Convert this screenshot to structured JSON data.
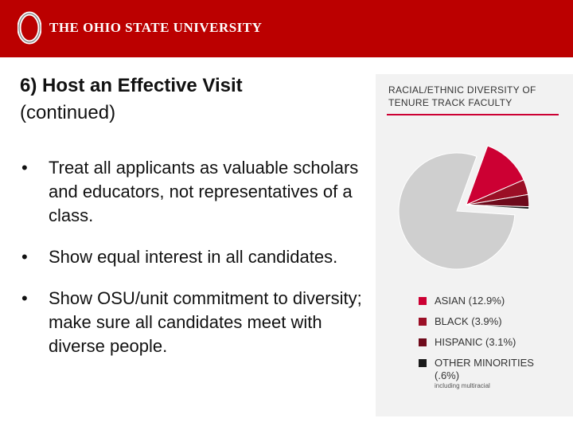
{
  "header": {
    "university": "THE OHIO STATE UNIVERSITY",
    "logo_letter": "O",
    "bg_color": "#bb0000"
  },
  "slide": {
    "title_bold": "6) Host an Effective Visit",
    "title_rest": "(continued)",
    "bullets": [
      "Treat all applicants as valuable scholars and educators, not representatives of a class.",
      "Show equal interest in all candidates.",
      "Show OSU/unit commitment to diversity; make sure all candidates meet with diverse people."
    ],
    "bullet_char": "•"
  },
  "chart_data": {
    "type": "pie",
    "title": "RACIAL/ETHNIC DIVERSITY OF TENURE TRACK FACULTY",
    "slices": [
      {
        "label": "ASIAN (12.9%)",
        "value": 12.9,
        "color": "#cc0033"
      },
      {
        "label": "BLACK (3.9%)",
        "value": 3.9,
        "color": "#9b0f26"
      },
      {
        "label": "HISPANIC (3.1%)",
        "value": 3.1,
        "color": "#6e0a1b"
      },
      {
        "label": "OTHER MINORITIES (.6%)",
        "value": 0.6,
        "color": "#1a1a1a",
        "note": "including multiracial"
      },
      {
        "label": "",
        "value": 79.5,
        "color": "#cfcfcf"
      }
    ],
    "legend_placement": "bottom"
  }
}
